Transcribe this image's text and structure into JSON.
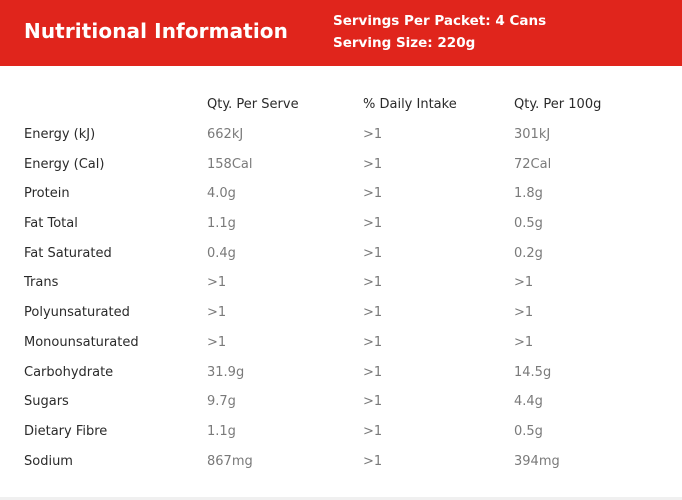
{
  "header": {
    "title": "Nutritional Information",
    "servings_per_packet": "Servings Per Packet: 4 Cans",
    "serving_size": "Serving Size: 220g",
    "background_color": "#e0251c"
  },
  "table": {
    "columns": [
      "",
      "Qty. Per Serve",
      "% Daily Intake",
      "Qty. Per 100g"
    ],
    "rows": [
      {
        "name": "Energy (kJ)",
        "per_serve": "662kJ",
        "daily": ">1",
        "per_100g": "301kJ"
      },
      {
        "name": "Energy (Cal)",
        "per_serve": "158Cal",
        "daily": ">1",
        "per_100g": "72Cal"
      },
      {
        "name": "Protein",
        "per_serve": "4.0g",
        "daily": ">1",
        "per_100g": "1.8g"
      },
      {
        "name": "Fat Total",
        "per_serve": "1.1g",
        "daily": ">1",
        "per_100g": "0.5g"
      },
      {
        "name": "Fat Saturated",
        "per_serve": "0.4g",
        "daily": ">1",
        "per_100g": "0.2g"
      },
      {
        "name": "Trans",
        "per_serve": ">1",
        "daily": ">1",
        "per_100g": ">1"
      },
      {
        "name": "Polyunsaturated",
        "per_serve": ">1",
        "daily": ">1",
        "per_100g": ">1"
      },
      {
        "name": "Monounsaturated",
        "per_serve": ">1",
        "daily": ">1",
        "per_100g": ">1"
      },
      {
        "name": "Carbohydrate",
        "per_serve": "31.9g",
        "daily": ">1",
        "per_100g": "14.5g"
      },
      {
        "name": "Sugars",
        "per_serve": "9.7g",
        "daily": ">1",
        "per_100g": "4.4g"
      },
      {
        "name": "Dietary Fibre",
        "per_serve": "1.1g",
        "daily": ">1",
        "per_100g": "0.5g"
      },
      {
        "name": "Sodium",
        "per_serve": "867mg",
        "daily": ">1",
        "per_100g": "394mg"
      }
    ]
  }
}
